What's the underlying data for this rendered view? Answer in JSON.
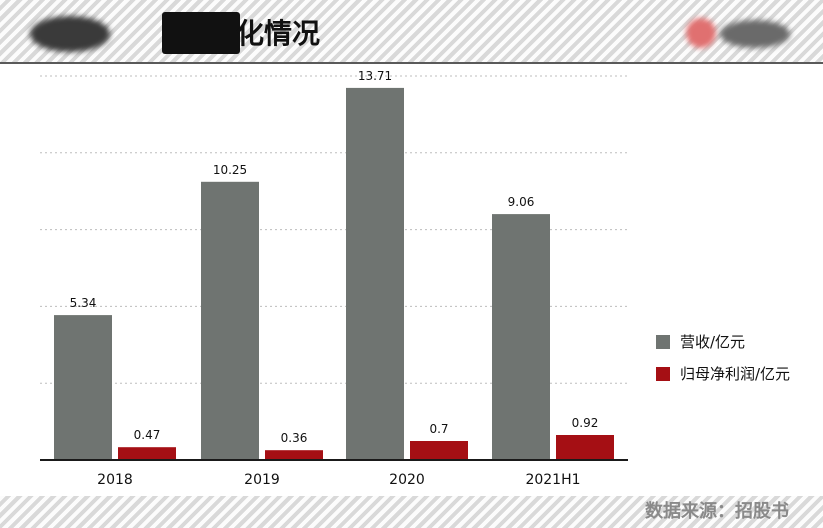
{
  "header": {
    "title_visible": "化情况"
  },
  "footer": {
    "source": "数据来源：招股书"
  },
  "colors": {
    "revenue": "#6f7471",
    "net_profit": "#a50f14",
    "gridline": "#bdbdbd",
    "axis": "#1a1a1a"
  },
  "chart_data": {
    "type": "bar",
    "categories": [
      "2018",
      "2019",
      "2020",
      "2021H1"
    ],
    "series": [
      {
        "name": "营收/亿元",
        "values": [
          5.34,
          10.25,
          13.71,
          9.06
        ]
      },
      {
        "name": "归母净利润/亿元",
        "values": [
          0.47,
          0.36,
          0.7,
          0.92
        ]
      }
    ],
    "data_labels": [
      [
        "5.34",
        "10.25",
        "13.71",
        "9.06"
      ],
      [
        "0.47",
        "0.36",
        "0.7",
        "0.92"
      ]
    ],
    "ylim": [
      0,
      14
    ],
    "grid": true,
    "legend_position": "right"
  }
}
